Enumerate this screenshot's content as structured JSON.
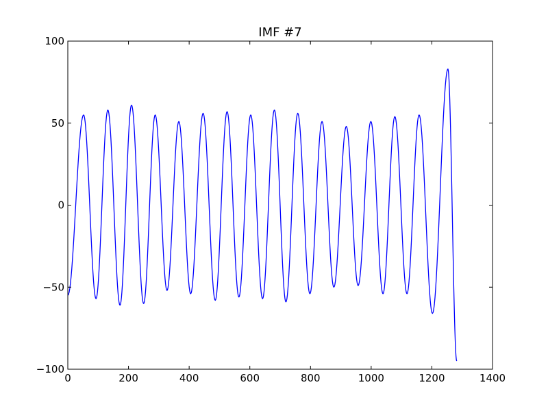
{
  "chart_data": {
    "type": "line",
    "title": "IMF #7",
    "xlabel": "",
    "ylabel": "",
    "xlim": [
      0,
      1400
    ],
    "ylim": [
      -100,
      100
    ],
    "xticks": [
      0,
      200,
      400,
      600,
      800,
      1000,
      1200,
      1400
    ],
    "yticks": [
      -100,
      -50,
      0,
      50,
      100
    ],
    "xtick_labels": [
      "0",
      "200",
      "400",
      "600",
      "800",
      "1000",
      "1200",
      "1400"
    ],
    "ytick_labels": [
      "−100",
      "−50",
      "0",
      "50",
      "100"
    ],
    "grid": false,
    "series": [
      {
        "color": "#0000ff",
        "x": [
          0,
          52,
          93,
          132,
          172,
          210,
          250,
          288,
          327,
          366,
          405,
          446,
          486,
          525,
          564,
          603,
          642,
          681,
          719,
          758,
          798,
          838,
          877,
          918,
          957,
          999,
          1039,
          1078,
          1118,
          1158,
          1202,
          1253,
          1282
        ],
        "y": [
          -55,
          55,
          -57,
          58,
          -61,
          61,
          -60,
          55,
          -52,
          51,
          -54,
          56,
          -58,
          57,
          -56,
          55,
          -57,
          58,
          -59,
          56,
          -54,
          51,
          -50,
          48,
          -49,
          51,
          -54,
          54,
          -54,
          55,
          -66,
          83,
          -95
        ]
      }
    ]
  }
}
